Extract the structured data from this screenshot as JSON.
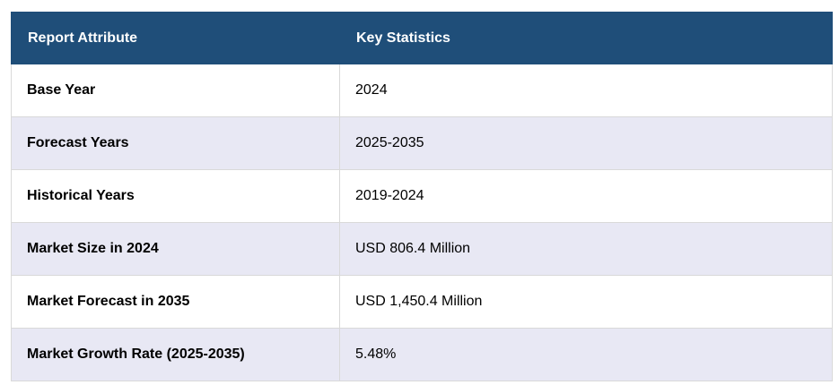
{
  "table": {
    "headers": [
      "Report Attribute",
      "Key Statistics"
    ],
    "rows": [
      {
        "attribute": "Base Year",
        "value": "2024"
      },
      {
        "attribute": "Forecast Years",
        "value": "2025-2035"
      },
      {
        "attribute": "Historical Years",
        "value": "2019-2024"
      },
      {
        "attribute": "Market Size in 2024",
        "value": "USD 806.4 Million"
      },
      {
        "attribute": "Market Forecast in 2035",
        "value": "USD 1,450.4 Million"
      },
      {
        "attribute": "Market Growth Rate (2025-2035)",
        "value": "5.48%"
      }
    ]
  },
  "colors": {
    "header_bg": "#1f4e79",
    "header_text": "#ffffff",
    "row_alt_bg": "#e8e8f4",
    "row_bg": "#ffffff"
  }
}
